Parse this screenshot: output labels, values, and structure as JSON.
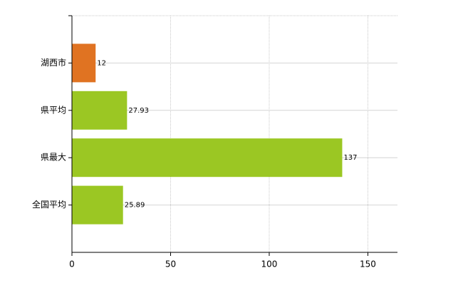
{
  "chart_data": {
    "type": "barh",
    "categories": [
      "湖西市",
      "県平均",
      "県最大",
      "全国平均"
    ],
    "values": [
      12,
      27.93,
      137,
      25.89
    ],
    "colors": [
      "#e07322",
      "#9bc723",
      "#9bc723",
      "#9bc723"
    ],
    "xlim": [
      0,
      165
    ],
    "xticks": [
      0,
      50,
      100,
      150
    ],
    "grid": true
  }
}
